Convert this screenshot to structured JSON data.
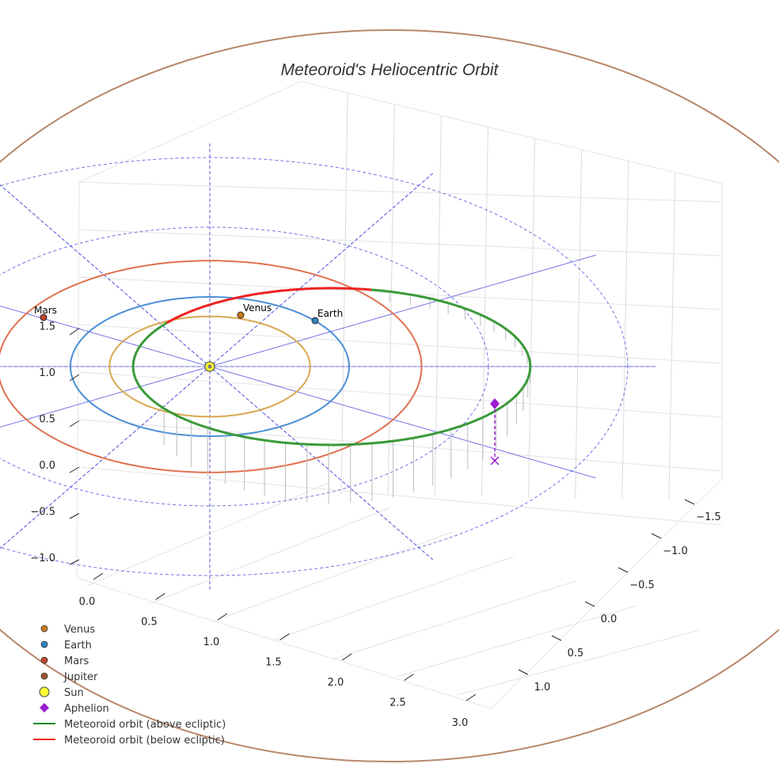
{
  "chart_data": {
    "type": "line",
    "projection": "3d",
    "title": "Meteoroid's Heliocentric Orbit",
    "axes": {
      "x": {
        "label": "",
        "ticks": [
          0.0,
          0.5,
          1.0,
          1.5,
          2.0,
          2.5,
          3.0
        ],
        "tick_labels": [
          "0.0",
          "0.5",
          "1.0",
          "1.5",
          "2.0",
          "2.5",
          "3.0"
        ]
      },
      "y": {
        "label": "",
        "ticks": [
          -1.5,
          -1.0,
          -0.5,
          0.0,
          0.5,
          1.0
        ],
        "tick_labels": [
          "−1.5",
          "−1.0",
          "−0.5",
          "0.0",
          "0.5",
          "1.0"
        ]
      },
      "z": {
        "label": "",
        "ticks": [
          -1.0,
          -0.5,
          0.0,
          0.5,
          1.0,
          1.5
        ],
        "tick_labels": [
          "−1.0",
          "−0.5",
          "0.0",
          "0.5",
          "1.0",
          "1.5"
        ]
      },
      "grid": true
    },
    "planets": [
      {
        "name": "Venus",
        "a_au": 0.72,
        "color": "#d8a850",
        "marker_color": "#c87a1a",
        "labeled": true,
        "angle_deg": 80
      },
      {
        "name": "Earth",
        "a_au": 1.0,
        "color": "#4a8fd4",
        "marker_color": "#2e86c1",
        "labeled": true,
        "angle_deg": 58
      },
      {
        "name": "Mars",
        "a_au": 1.52,
        "color": "#e07050",
        "marker_color": "#c0442a",
        "labeled": true,
        "angle_deg": 150
      },
      {
        "name": "Jupiter",
        "a_au": 5.2,
        "color": "#b8866a",
        "marker_color": "#a0522d",
        "labeled": false
      }
    ],
    "sun": {
      "name": "Sun",
      "color": "#ffff33"
    },
    "meteoroid_orbit": {
      "perihelion_au": 0.55,
      "aphelion_au": 2.3,
      "segments": [
        {
          "name": "Meteoroid orbit (above ecliptic)",
          "color": "#3a9a3a"
        },
        {
          "name": "Meteoroid orbit (below ecliptic)",
          "color": "#ee2222"
        }
      ]
    },
    "aphelion_marker": {
      "name": "Aphelion",
      "color": "#9b1fd1"
    },
    "reference_grid": {
      "color": "#4444dd",
      "style": "dashed",
      "ring_radii_au": [
        1.0,
        2.0,
        3.0
      ],
      "spokes": 12
    },
    "legend": {
      "placement": "bottom-left",
      "entries": [
        {
          "label": "Venus",
          "kind": "dot",
          "color": "#c87a1a"
        },
        {
          "label": "Earth",
          "kind": "dot",
          "color": "#2e86c1"
        },
        {
          "label": "Mars",
          "kind": "dot",
          "color": "#c0442a"
        },
        {
          "label": "Jupiter",
          "kind": "dot",
          "color": "#a0522d"
        },
        {
          "label": "Sun",
          "kind": "bigdot",
          "color": "#ffff33"
        },
        {
          "label": "Aphelion",
          "kind": "diamond",
          "color": "#9b1fd1"
        },
        {
          "label": "Meteoroid orbit (above ecliptic)",
          "kind": "line",
          "color": "#1a8a1a"
        },
        {
          "label": "Meteoroid orbit (below ecliptic)",
          "kind": "line",
          "color": "#ee2222"
        }
      ]
    }
  }
}
